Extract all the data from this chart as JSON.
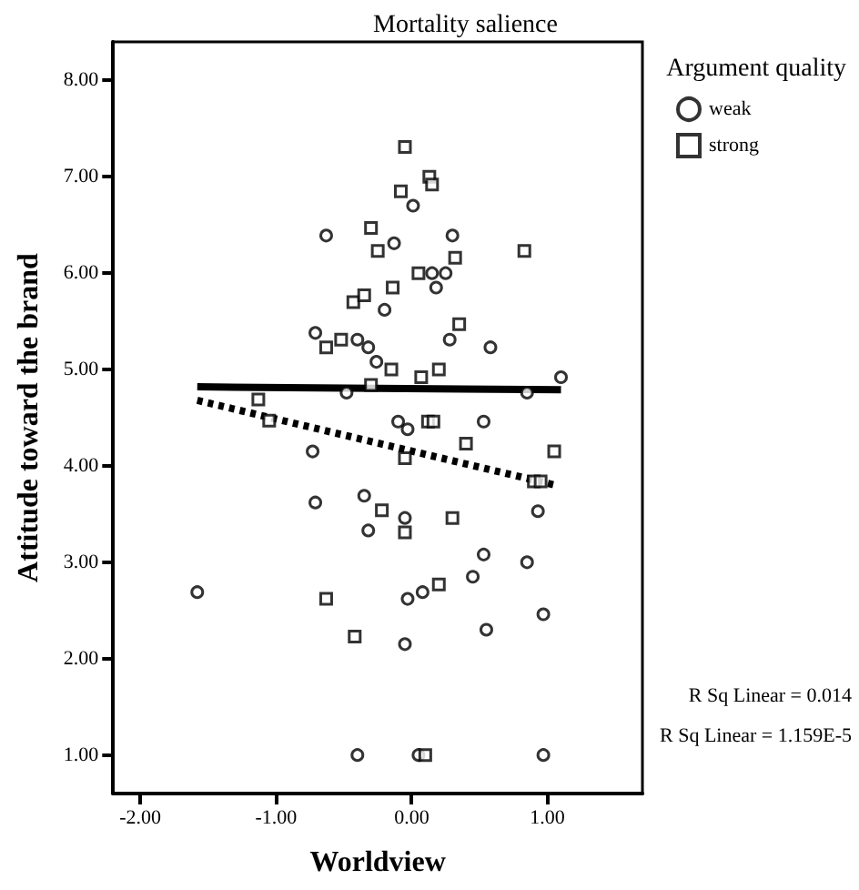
{
  "chart_data": {
    "type": "scatter",
    "title": "Mortality salience",
    "xlabel": "Worldview",
    "ylabel": "Attitude toward the brand",
    "legend_title": "Argument quality",
    "legend": "top right",
    "grid": false,
    "xlim": [
      -2.2,
      1.7
    ],
    "ylim": [
      0.6,
      8.4
    ],
    "xticks": [
      {
        "value": -2,
        "label": "-2.00"
      },
      {
        "value": -1,
        "label": "-1.00"
      },
      {
        "value": 0,
        "label": "0.00"
      },
      {
        "value": 1,
        "label": "1.00"
      }
    ],
    "yticks": [
      {
        "value": 1,
        "label": "1.00"
      },
      {
        "value": 2,
        "label": "2.00"
      },
      {
        "value": 3,
        "label": "3.00"
      },
      {
        "value": 4,
        "label": "4.00"
      },
      {
        "value": 5,
        "label": "5.00"
      },
      {
        "value": 6,
        "label": "6.00"
      },
      {
        "value": 7,
        "label": "7.00"
      },
      {
        "value": 8,
        "label": "8.00"
      }
    ],
    "annotations": [
      "R Sq Linear = 0.014",
      "R Sq Linear = 1.159E-5"
    ],
    "series": [
      {
        "name": "weak",
        "marker": "circle",
        "color": "#000000",
        "x": [
          -0.63,
          0.01,
          -0.13,
          0.3,
          0.15,
          0.25,
          0.18,
          -0.2,
          -0.71,
          -0.4,
          -0.32,
          -0.26,
          0.28,
          0.58,
          1.1,
          -0.48,
          0.85,
          -0.1,
          -0.03,
          0.53,
          -0.73,
          -0.71,
          -0.35,
          -0.32,
          -0.05,
          0.93,
          0.53,
          0.85,
          0.45,
          -1.58,
          -0.03,
          0.08,
          0.55,
          0.97,
          -0.05,
          -0.4,
          0.05,
          0.97
        ],
        "values": [
          6.39,
          6.7,
          6.31,
          6.39,
          6.0,
          6.0,
          5.85,
          5.62,
          5.38,
          5.31,
          5.23,
          5.08,
          5.31,
          5.23,
          4.92,
          4.76,
          4.76,
          4.46,
          4.38,
          4.46,
          4.15,
          3.62,
          3.69,
          3.33,
          3.46,
          3.53,
          3.08,
          3.0,
          2.85,
          2.69,
          2.62,
          2.69,
          2.3,
          2.46,
          2.15,
          1.0,
          1.0,
          1.0
        ]
      },
      {
        "name": "strong",
        "marker": "square",
        "color": "#000000",
        "x": [
          -0.05,
          0.13,
          0.15,
          -0.08,
          -0.3,
          -0.25,
          0.83,
          0.32,
          0.05,
          -0.14,
          -0.43,
          -0.35,
          0.35,
          -0.63,
          -0.52,
          -0.15,
          0.07,
          0.2,
          -0.3,
          -1.13,
          -1.05,
          0.12,
          0.16,
          0.4,
          -0.05,
          1.05,
          0.9,
          0.95,
          -0.22,
          -0.05,
          0.3,
          0.2,
          -0.63,
          -0.42,
          0.1
        ],
        "values": [
          7.31,
          7.0,
          6.92,
          6.85,
          6.47,
          6.23,
          6.23,
          6.16,
          6.0,
          5.85,
          5.7,
          5.77,
          5.47,
          5.23,
          5.31,
          5.0,
          4.92,
          5.0,
          4.84,
          4.69,
          4.47,
          4.46,
          4.46,
          4.23,
          4.08,
          4.15,
          3.84,
          3.84,
          3.54,
          3.31,
          3.46,
          2.77,
          2.62,
          2.23,
          1.0
        ]
      },
      {
        "type": "line",
        "marker": "none",
        "line_style": "solid",
        "color": "#000000",
        "x": [
          -1.58,
          1.1
        ],
        "values": [
          4.82,
          4.79
        ]
      },
      {
        "type": "line",
        "marker": "none",
        "line_style": "dotted",
        "color": "#000000",
        "x": [
          -1.58,
          1.06
        ],
        "values": [
          4.68,
          3.8
        ]
      }
    ]
  }
}
